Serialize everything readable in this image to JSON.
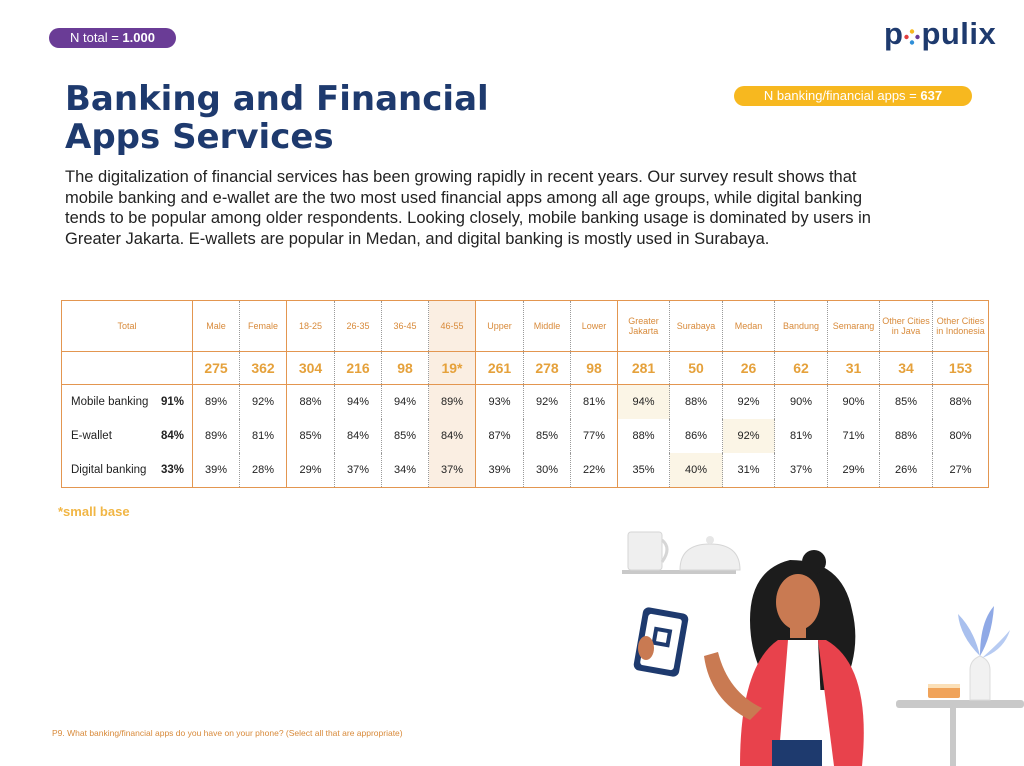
{
  "badges": {
    "total_label": "N total = ",
    "total_value": "1.000",
    "banking_label": "N banking/financial apps = ",
    "banking_value": "637"
  },
  "logo": {
    "text_left": "p",
    "text_right": "pulix",
    "brand_color": "#1e3a6e",
    "dot_colors": [
      "#f7b81f",
      "#6a3c96",
      "#2f8fd8",
      "#e23d3d"
    ]
  },
  "title": {
    "line1": "Banking and Financial",
    "line2": "Apps Services"
  },
  "intro": "The digitalization of financial services has been growing rapidly in recent years. Our survey result shows that mobile banking and e-wallet are the two most used financial apps among all age groups, while digital banking tends to be popular among older respondents. Looking closely, mobile banking usage is dominated by users in Greater Jakarta. E-wallets are popular in Medan, and digital banking is mostly used in Surabaya.",
  "table": {
    "total_header": "Total",
    "columns": [
      {
        "label": "Male",
        "n": "275"
      },
      {
        "label": "Female",
        "n": "362"
      },
      {
        "label": "18-25",
        "n": "304"
      },
      {
        "label": "26-35",
        "n": "216"
      },
      {
        "label": "36-45",
        "n": "98"
      },
      {
        "label": "46-55",
        "n": "19*"
      },
      {
        "label": "Upper",
        "n": "261"
      },
      {
        "label": "Middle",
        "n": "278"
      },
      {
        "label": "Lower",
        "n": "98"
      },
      {
        "label": "Greater Jakarta",
        "n": "281"
      },
      {
        "label": "Surabaya",
        "n": "50"
      },
      {
        "label": "Medan",
        "n": "26"
      },
      {
        "label": "Bandung",
        "n": "62"
      },
      {
        "label": "Semarang",
        "n": "31"
      },
      {
        "label": "Other Cities in Java",
        "n": "34"
      },
      {
        "label": "Other Cities in Indonesia",
        "n": "153"
      }
    ],
    "rows": [
      {
        "label": "Mobile banking",
        "total": "91%",
        "values": [
          "89%",
          "92%",
          "88%",
          "94%",
          "94%",
          "89%",
          "93%",
          "92%",
          "81%",
          "94%",
          "88%",
          "92%",
          "90%",
          "90%",
          "85%",
          "88%"
        ]
      },
      {
        "label": "E-wallet",
        "total": "84%",
        "values": [
          "89%",
          "81%",
          "85%",
          "84%",
          "85%",
          "84%",
          "87%",
          "85%",
          "77%",
          "88%",
          "86%",
          "92%",
          "81%",
          "71%",
          "88%",
          "80%"
        ]
      },
      {
        "label": "Digital banking",
        "total": "33%",
        "values": [
          "39%",
          "28%",
          "29%",
          "37%",
          "34%",
          "37%",
          "39%",
          "30%",
          "22%",
          "35%",
          "40%",
          "31%",
          "37%",
          "29%",
          "26%",
          "27%"
        ]
      }
    ]
  },
  "small_base_note": "*small base",
  "footnote": "P9. What banking/financial apps do you have on your phone? (Select all that are appropriate)",
  "colors": {
    "accent_orange": "#e39650",
    "accent_yellow": "#f7b81f",
    "purple": "#6a3c96",
    "navy": "#1e3a6e"
  }
}
